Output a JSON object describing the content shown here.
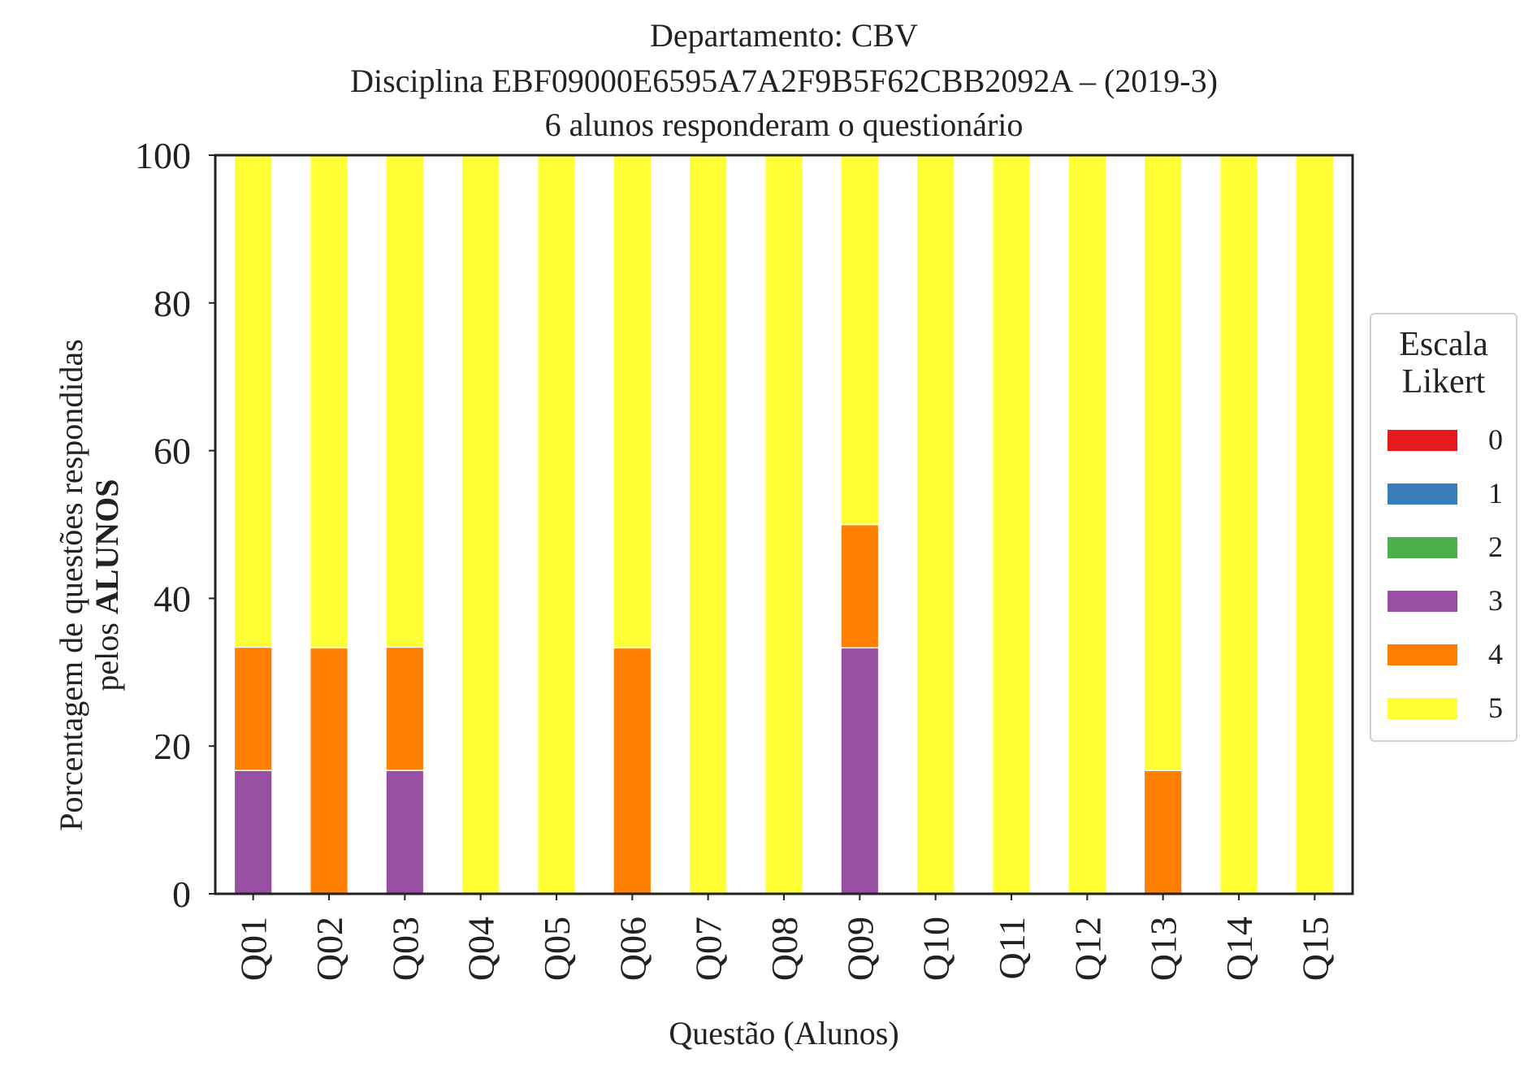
{
  "chart_data": {
    "type": "bar",
    "stacked": true,
    "title_lines": [
      "Departamento: CBV",
      "Disciplina EBF09000E6595A7A2F9B5F62CBB2092A – (2019-3)",
      "6 alunos responderam o questionário"
    ],
    "xlabel": "Questão (Alunos)",
    "ylabel_line1": "Porcentagem de questões respondidas",
    "ylabel_line2_prefix": "pelos ",
    "ylabel_line2_bold": "ALUNOS",
    "ylim": [
      0,
      100
    ],
    "yticks": [
      "0",
      "20",
      "40",
      "60",
      "80",
      "100"
    ],
    "categories": [
      "Q01",
      "Q02",
      "Q03",
      "Q04",
      "Q05",
      "Q06",
      "Q07",
      "Q08",
      "Q09",
      "Q10",
      "Q11",
      "Q12",
      "Q13",
      "Q14",
      "Q15"
    ],
    "legend_title_line1": "Escala",
    "legend_title_line2": "Likert",
    "legend_position": "right",
    "series": [
      {
        "name": "0",
        "color": "#e41a1c",
        "values": [
          0,
          0,
          0,
          0,
          0,
          0,
          0,
          0,
          0,
          0,
          0,
          0,
          0,
          0,
          0
        ]
      },
      {
        "name": "1",
        "color": "#377eb8",
        "values": [
          0,
          0,
          0,
          0,
          0,
          0,
          0,
          0,
          0,
          0,
          0,
          0,
          0,
          0,
          0
        ]
      },
      {
        "name": "2",
        "color": "#4daf4a",
        "values": [
          0,
          0,
          0,
          0,
          0,
          0,
          0,
          0,
          0,
          0,
          0,
          0,
          0,
          0,
          0
        ]
      },
      {
        "name": "3",
        "color": "#984ea3",
        "values": [
          16.7,
          0,
          16.7,
          0,
          0,
          0,
          0,
          0,
          33.3,
          0,
          0,
          0,
          0,
          0,
          0
        ]
      },
      {
        "name": "4",
        "color": "#ff7f00",
        "values": [
          16.7,
          33.3,
          16.7,
          0,
          0,
          33.3,
          0,
          0,
          16.7,
          0,
          0,
          0,
          16.7,
          0,
          0
        ]
      },
      {
        "name": "5",
        "color": "#ffff33",
        "values": [
          66.6,
          66.7,
          66.6,
          100,
          100,
          66.7,
          100,
          100,
          50,
          100,
          100,
          100,
          83.3,
          100,
          100
        ]
      }
    ]
  }
}
